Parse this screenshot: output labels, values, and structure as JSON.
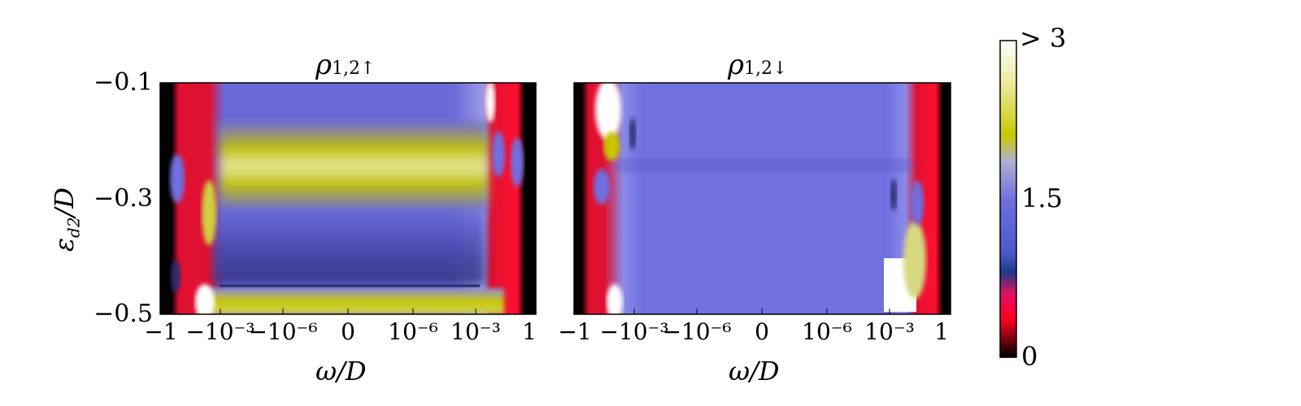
{
  "chart_data": [
    {
      "type": "heatmap",
      "title": "ρ",
      "title_sub": "1,2↑",
      "xlabel": "ω/D",
      "ylabel": "ε",
      "ylabel_sub": "d2",
      "ylabel_suffix": "/D",
      "x_ticks": [
        "−1",
        "−10⁻³",
        "−10⁻⁶",
        "0",
        "10⁻⁶",
        "10⁻³",
        "1"
      ],
      "y_ticks": [
        "−0.1",
        "−0.3",
        "−0.5"
      ],
      "ylim": [
        -0.5,
        -0.1
      ],
      "description_of_features": {
        "bright_band_y": -0.24,
        "dark_edge_y": -0.45
      }
    },
    {
      "type": "heatmap",
      "title": "ρ",
      "title_sub": "1,2↓",
      "xlabel": "ω/D",
      "x_ticks": [
        "−1",
        "−10⁻³",
        "−10⁻⁶",
        "0",
        "10⁻⁶",
        "10⁻³",
        "1"
      ],
      "y_ticks": [
        "−0.1",
        "−0.3",
        "−0.5"
      ],
      "ylim": [
        -0.5,
        -0.1
      ]
    }
  ],
  "colorbar": {
    "min_label": "0",
    "mid_label": "1.5",
    "max_label": "> 3",
    "range": [
      0,
      3
    ],
    "colors": [
      "#000000",
      "#ff0022",
      "#1a3a8a",
      "#7070e0",
      "#c8c800",
      "#ffffff"
    ]
  }
}
